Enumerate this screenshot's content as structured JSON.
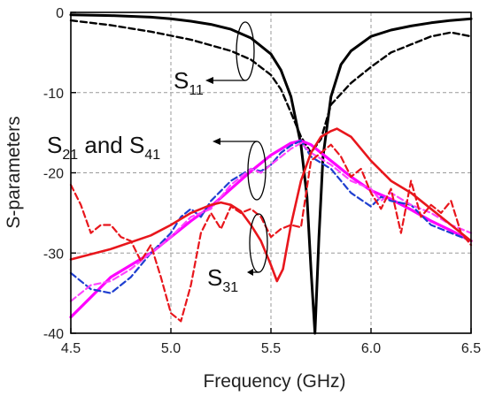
{
  "chart_data": {
    "type": "line",
    "xlabel": "Frequency (GHz)",
    "ylabel": "S-parameters",
    "xlim": [
      4.5,
      6.5
    ],
    "ylim": [
      -40,
      0
    ],
    "xticks": [
      4.5,
      5.0,
      5.5,
      6.0,
      6.5
    ],
    "xtick_labels": [
      "4.5",
      "5.0",
      "5.5",
      "6.0",
      "6.5"
    ],
    "yticks": [
      0,
      -10,
      -20,
      -30,
      -40
    ],
    "ytick_labels": [
      "0",
      "-10",
      "-20",
      "-30",
      "-40"
    ],
    "grid": true,
    "series": [
      {
        "color": "#000000",
        "style": "solid",
        "x": [
          4.5,
          4.7,
          4.9,
          5.0,
          5.1,
          5.2,
          5.3,
          5.4,
          5.5,
          5.55,
          5.6,
          5.65,
          5.68,
          5.7,
          5.72,
          5.74,
          5.76,
          5.8,
          5.85,
          5.9,
          6.0,
          6.1,
          6.2,
          6.3,
          6.4,
          6.5
        ],
        "y": [
          -0.3,
          -0.4,
          -0.6,
          -0.8,
          -1.1,
          -1.5,
          -2.1,
          -3.2,
          -5.2,
          -7.2,
          -10.5,
          -16.5,
          -23,
          -32,
          -40,
          -28,
          -18,
          -10.5,
          -6.5,
          -4.8,
          -3.0,
          -2.2,
          -1.7,
          -1.3,
          -1.0,
          -0.8
        ]
      },
      {
        "color": "#000000",
        "style": "dashed",
        "x": [
          4.5,
          4.7,
          4.9,
          5.1,
          5.3,
          5.4,
          5.5,
          5.55,
          5.6,
          5.65,
          5.7,
          5.75,
          5.8,
          5.9,
          6.0,
          6.1,
          6.2,
          6.3,
          6.4,
          6.5
        ],
        "y": [
          -1.0,
          -1.6,
          -2.4,
          -3.4,
          -4.8,
          -5.9,
          -7.8,
          -9.6,
          -12.5,
          -15.5,
          -17.5,
          -15.8,
          -11.5,
          -8.8,
          -6.8,
          -5.0,
          -4.0,
          -3.0,
          -2.5,
          -3.0
        ]
      },
      {
        "color": "#ff00ff",
        "style": "solid",
        "x": [
          4.5,
          4.6,
          4.7,
          4.8,
          4.9,
          5.0,
          5.1,
          5.2,
          5.3,
          5.4,
          5.5,
          5.6,
          5.65,
          5.7,
          5.8,
          5.9,
          6.0,
          6.1,
          6.2,
          6.3,
          6.4,
          6.5
        ],
        "y": [
          -38,
          -35.5,
          -33,
          -31.5,
          -30,
          -28,
          -26,
          -24.2,
          -22,
          -19.8,
          -17.8,
          -16.3,
          -16.0,
          -16.5,
          -18.5,
          -20.5,
          -22.2,
          -23.3,
          -24.6,
          -26,
          -27.2,
          -28.5
        ]
      },
      {
        "color": "#1f3fd0",
        "style": "dashed",
        "x": [
          4.5,
          4.6,
          4.7,
          4.8,
          4.9,
          5.0,
          5.05,
          5.1,
          5.15,
          5.2,
          5.3,
          5.4,
          5.45,
          5.5,
          5.55,
          5.6,
          5.65,
          5.7,
          5.8,
          5.85,
          5.9,
          6.0,
          6.05,
          6.1,
          6.2,
          6.3,
          6.4,
          6.5
        ],
        "y": [
          -32.5,
          -34.5,
          -35,
          -33,
          -30,
          -27.5,
          -25.5,
          -24.5,
          -25.5,
          -23.5,
          -21,
          -19.5,
          -19.8,
          -19,
          -17.5,
          -16.6,
          -16.0,
          -18,
          -19.5,
          -21,
          -22.5,
          -24.2,
          -23,
          -23.5,
          -24,
          -26.5,
          -27.5,
          -28.5
        ]
      },
      {
        "color": "#ff44ff",
        "style": "dashed",
        "x": [
          4.5,
          4.6,
          4.7,
          4.8,
          4.9,
          5.0,
          5.1,
          5.2,
          5.3,
          5.4,
          5.45,
          5.5,
          5.6,
          5.65,
          5.7,
          5.8,
          5.9,
          6.0,
          6.05,
          6.1,
          6.2,
          6.3,
          6.4,
          6.5
        ],
        "y": [
          -36,
          -34,
          -33.5,
          -32,
          -30,
          -28,
          -25.5,
          -24.5,
          -21.5,
          -19.5,
          -20,
          -19,
          -17,
          -16.3,
          -17.5,
          -19,
          -21,
          -22,
          -23.5,
          -22.5,
          -24,
          -25,
          -26.5,
          -27.5
        ]
      },
      {
        "color": "#e8161c",
        "style": "solid",
        "x": [
          4.5,
          4.7,
          4.9,
          5.0,
          5.1,
          5.2,
          5.25,
          5.3,
          5.35,
          5.4,
          5.45,
          5.5,
          5.53,
          5.56,
          5.6,
          5.65,
          5.7,
          5.75,
          5.8,
          5.83,
          5.9,
          6.0,
          6.1,
          6.2,
          6.3,
          6.4,
          6.5
        ],
        "y": [
          -30.8,
          -29.5,
          -27.8,
          -26.5,
          -25,
          -24,
          -23.7,
          -24,
          -24.8,
          -26.5,
          -28.5,
          -31.5,
          -33.5,
          -32,
          -26.5,
          -21,
          -17.5,
          -15.5,
          -14.8,
          -14.5,
          -15.5,
          -18.5,
          -21,
          -22.5,
          -24.5,
          -26.5,
          -28.5
        ]
      },
      {
        "color": "#e8161c",
        "style": "dashed",
        "x": [
          4.5,
          4.55,
          4.6,
          4.65,
          4.7,
          4.75,
          4.8,
          4.85,
          4.9,
          4.95,
          5.0,
          5.05,
          5.1,
          5.15,
          5.2,
          5.25,
          5.3,
          5.35,
          5.4,
          5.45,
          5.5,
          5.55,
          5.6,
          5.65,
          5.7,
          5.75,
          5.8,
          5.85,
          5.9,
          5.95,
          6.0,
          6.05,
          6.1,
          6.15,
          6.2,
          6.25,
          6.3,
          6.35,
          6.4,
          6.45,
          6.5
        ],
        "y": [
          -21.5,
          -24,
          -27.5,
          -26.5,
          -26.5,
          -28,
          -28.5,
          -31,
          -29,
          -33,
          -37.5,
          -38.5,
          -34,
          -27.5,
          -25,
          -27,
          -24.2,
          -25,
          -24.5,
          -25.5,
          -28,
          -27,
          -26.5,
          -26.8,
          -18.5,
          -17.5,
          -16.5,
          -18,
          -20.5,
          -19.5,
          -22.5,
          -24.5,
          -22,
          -27.5,
          -21,
          -25.5,
          -24,
          -25,
          -23.5,
          -27.5,
          -29
        ]
      }
    ],
    "annotations": [
      {
        "text": "S",
        "sub": "11"
      },
      {
        "text": "S",
        "sub": "21",
        "mid": " and S",
        "sub2": "41"
      },
      {
        "text": "S",
        "sub": "31"
      }
    ]
  }
}
